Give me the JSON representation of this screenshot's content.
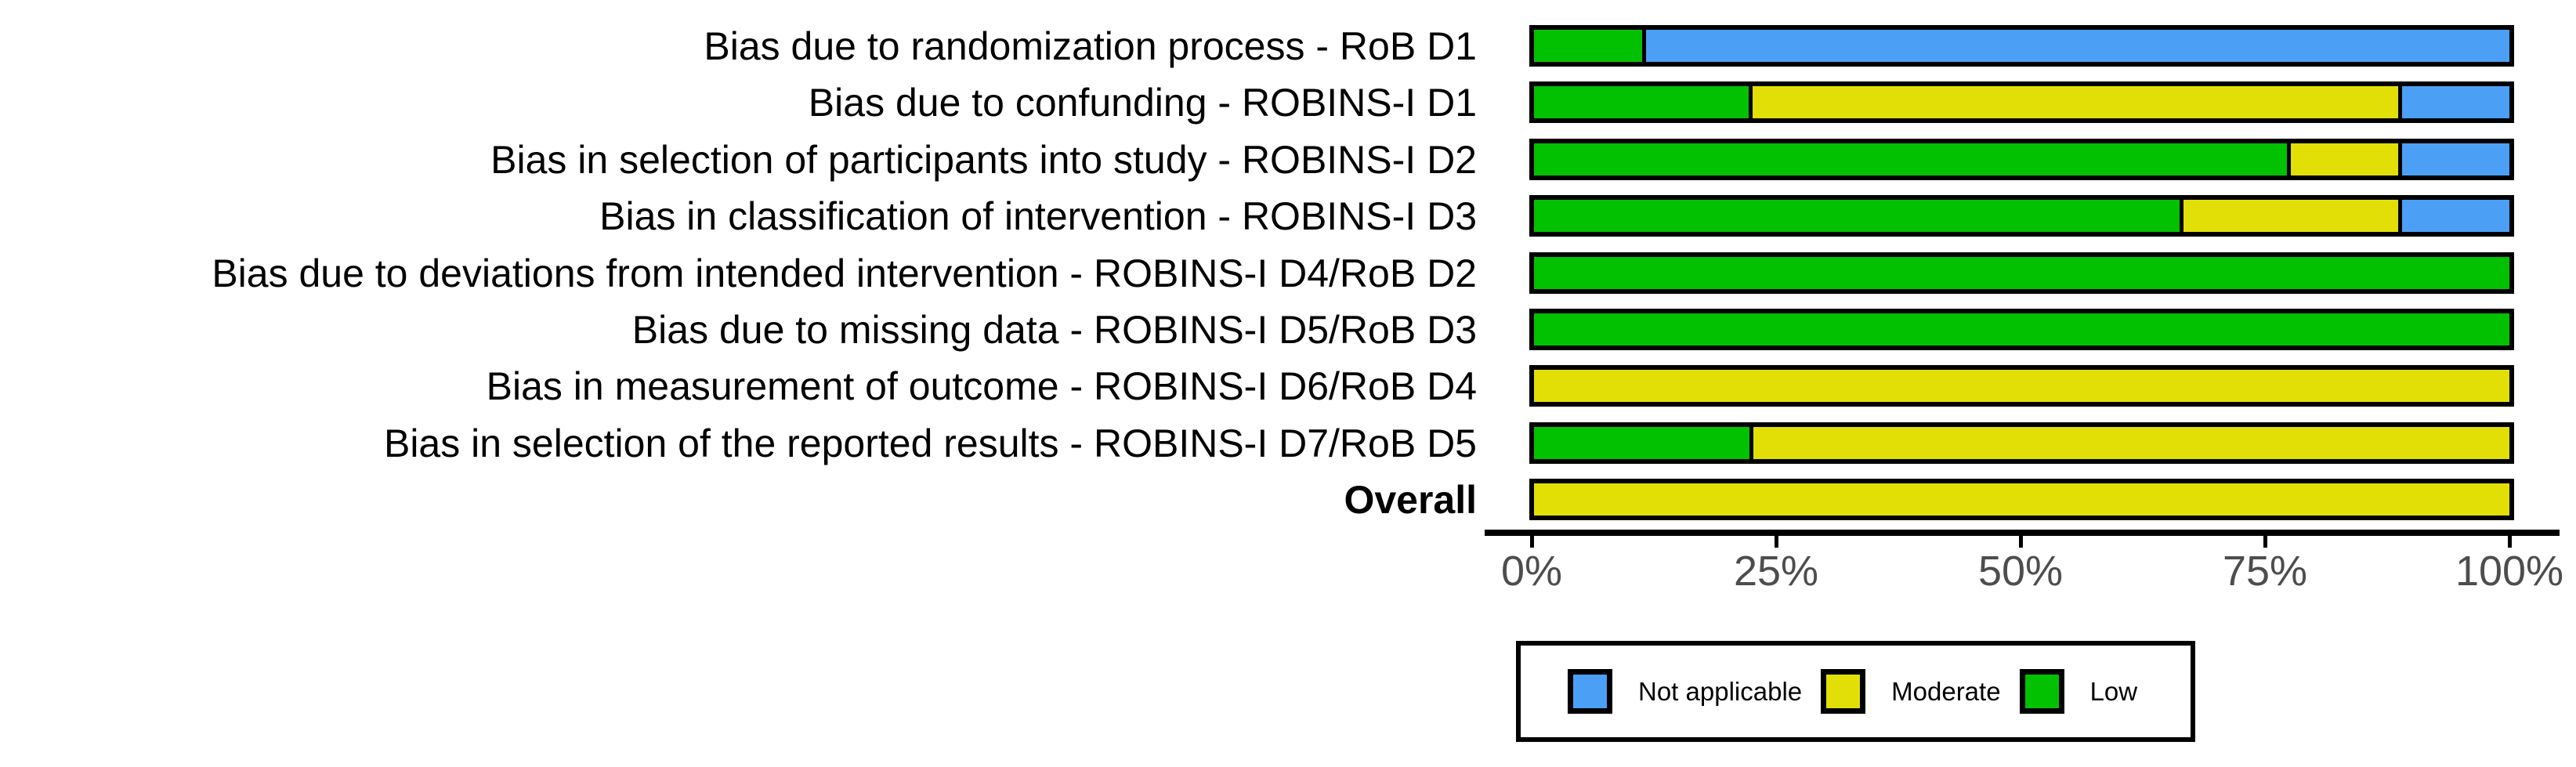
{
  "figure": {
    "background": "#ffffff"
  },
  "colors": {
    "low": "#02C100",
    "moderate": "#E2DF07",
    "not_applicable": "#4B9FF5",
    "bar_border": "#000000",
    "axis_text": "#4d4d4d"
  },
  "axis": {
    "tick_labels": [
      "0%",
      "25%",
      "50%",
      "75%",
      "100%"
    ]
  },
  "legend": {
    "items": [
      {
        "label": "Not applicable",
        "color_key": "not_applicable"
      },
      {
        "label": "Moderate",
        "color_key": "moderate"
      },
      {
        "label": "Low",
        "color_key": "low"
      }
    ]
  },
  "chart_data": {
    "type": "bar",
    "subtype": "horizontal-stacked-percent",
    "title": "",
    "xlabel": "",
    "ylabel": "",
    "xlim": [
      0,
      100
    ],
    "x_tick_labels": [
      "0%",
      "25%",
      "50%",
      "75%",
      "100%"
    ],
    "grid": false,
    "legend_position": "bottom",
    "categories": [
      "Bias due to randomization process - RoB D1",
      "Bias due to confunding - ROBINS-I D1",
      "Bias in selection of participants into study - ROBINS-I D2",
      "Bias in classification of intervention - ROBINS-I D3",
      "Bias due to deviations from intended intervention - ROBINS-I D4/RoB D2",
      "Bias due to missing data - ROBINS-I D5/RoB D3",
      "Bias in measurement of outcome - ROBINS-I D6/RoB D4",
      "Bias in selection of the reported results - ROBINS-I D7/RoB D5",
      "Overall"
    ],
    "bold_categories": [
      "Overall"
    ],
    "series": [
      {
        "name": "Low",
        "color_key": "low",
        "values": [
          11.1,
          22.2,
          77.8,
          66.7,
          100,
          100,
          0,
          22.2,
          0
        ]
      },
      {
        "name": "Moderate",
        "color_key": "moderate",
        "values": [
          0,
          66.7,
          11.1,
          22.2,
          0,
          0,
          100,
          77.8,
          100
        ]
      },
      {
        "name": "Not applicable",
        "color_key": "not_applicable",
        "values": [
          88.9,
          11.1,
          11.1,
          11.1,
          0,
          0,
          0,
          0,
          0
        ]
      }
    ]
  }
}
